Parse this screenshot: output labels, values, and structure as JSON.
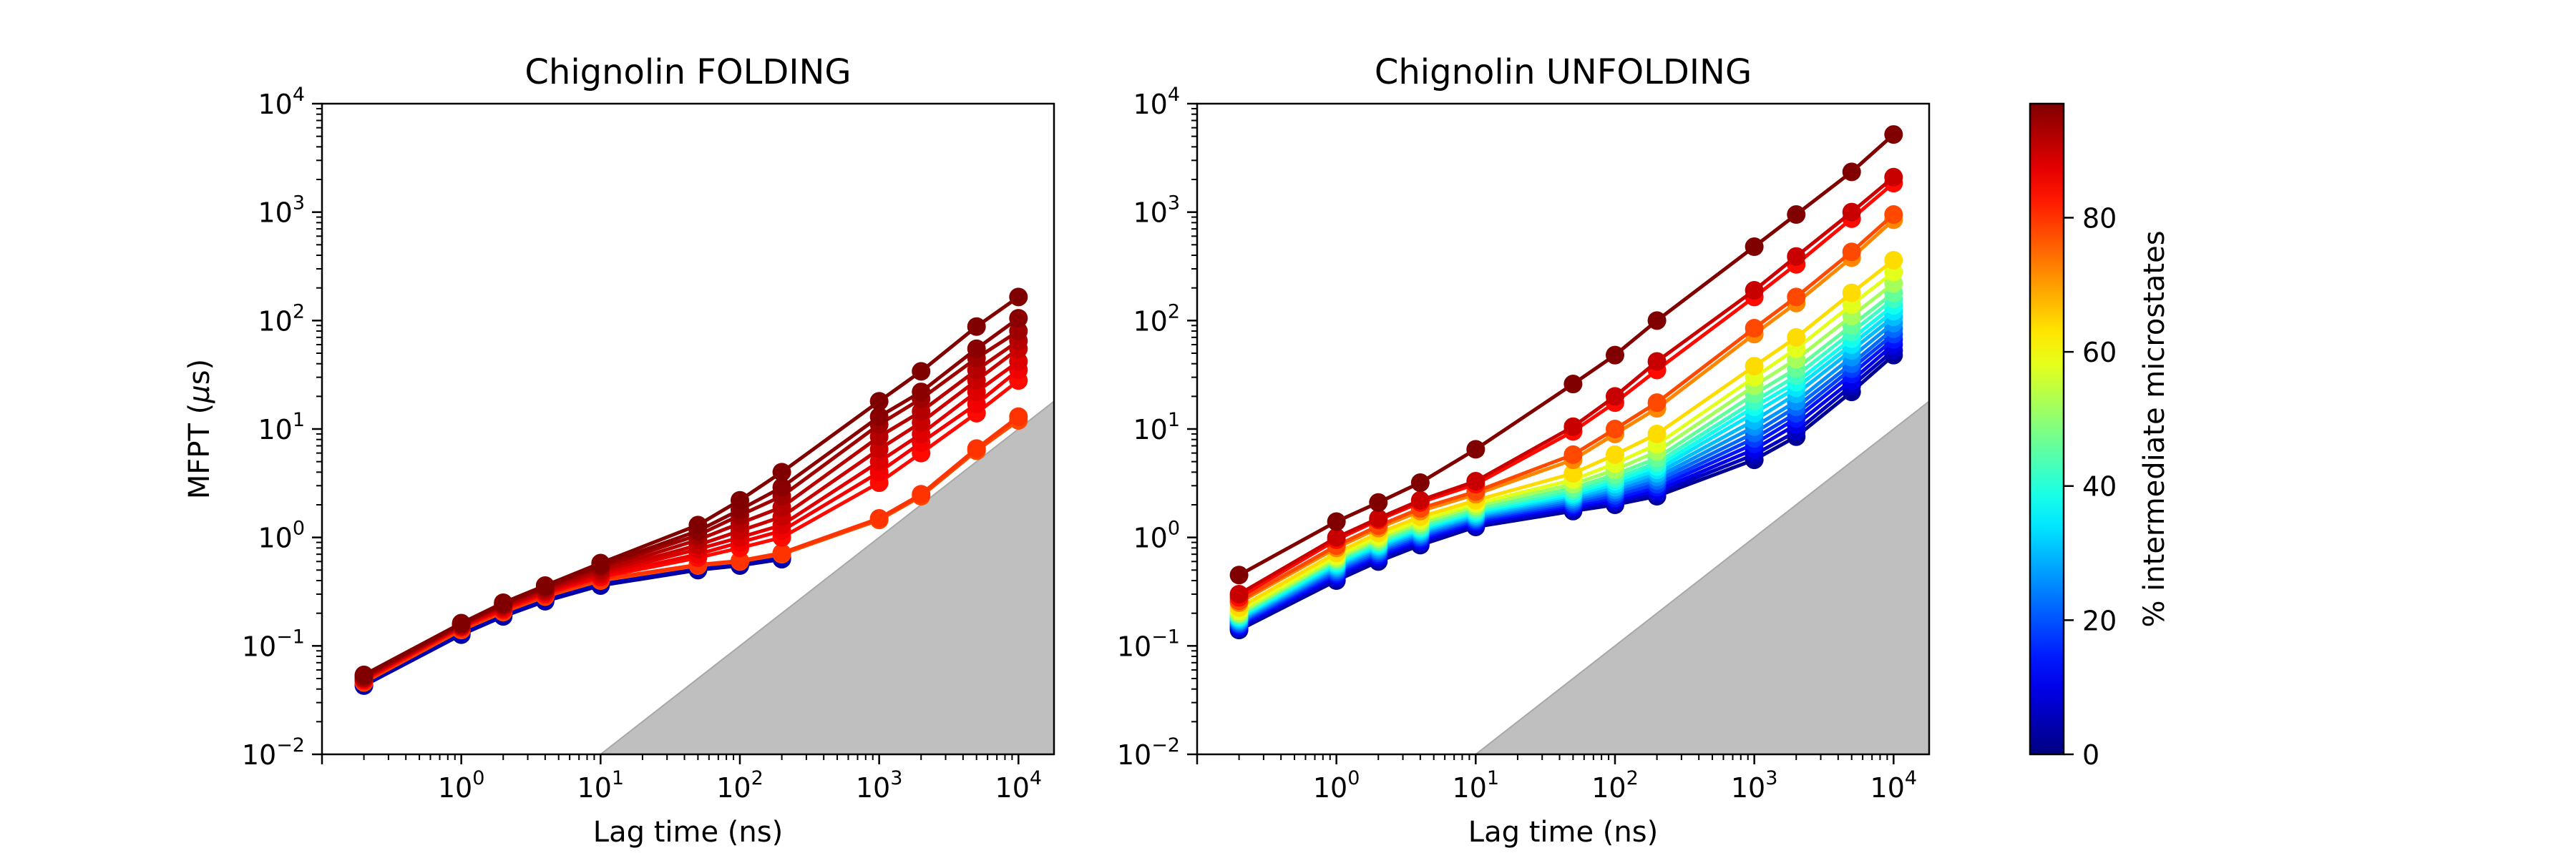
{
  "chart_data": [
    {
      "type": "line",
      "title": "Chignolin FOLDING",
      "xlabel": "Lag time (ns)",
      "ylabel": "MFPT (μs)",
      "ylabel_prefix": "MFPT (",
      "ylabel_symbol": "μ",
      "ylabel_suffix": "s)",
      "xscale": "log",
      "yscale": "log",
      "xlim": [
        0.1,
        18000
      ],
      "ylim": [
        0.01,
        10000
      ],
      "x": [
        0.2,
        1,
        2,
        4,
        10,
        50,
        100,
        200,
        1000,
        2000,
        5000,
        10000
      ],
      "x_ticks": [
        1,
        10,
        100,
        1000,
        10000
      ],
      "y_ticks": [
        0.01,
        0.1,
        1,
        10,
        100,
        1000,
        10000
      ],
      "shaded_region": {
        "from_x": 10,
        "y_equals_x_over": 1000,
        "color": "#bfbfbf"
      },
      "series": [
        {
          "intermediate_pct": 2,
          "values": [
            0.043,
            0.127,
            0.187,
            0.258,
            0.36,
            0.5,
            0.55,
            0.63,
            null,
            null,
            null,
            null
          ]
        },
        {
          "intermediate_pct": 5,
          "values": [
            0.044,
            0.13,
            0.192,
            0.265,
            0.37,
            0.52,
            0.57,
            0.65,
            null,
            null,
            null,
            null
          ]
        },
        {
          "intermediate_pct": 78,
          "values": [
            0.046,
            0.14,
            0.205,
            0.285,
            0.4,
            0.55,
            0.6,
            0.7,
            1.45,
            2.4,
            6.3,
            12.0
          ]
        },
        {
          "intermediate_pct": 80,
          "values": [
            0.047,
            0.143,
            0.21,
            0.29,
            0.41,
            0.56,
            0.61,
            0.72,
            1.5,
            2.5,
            6.6,
            13.0
          ]
        },
        {
          "intermediate_pct": 84,
          "values": [
            0.048,
            0.148,
            0.215,
            0.3,
            0.43,
            0.65,
            0.8,
            1.0,
            3.2,
            6.0,
            14.0,
            28.0
          ]
        },
        {
          "intermediate_pct": 86,
          "values": [
            0.049,
            0.15,
            0.22,
            0.31,
            0.44,
            0.7,
            0.9,
            1.15,
            4.0,
            7.5,
            17.0,
            35.0
          ]
        },
        {
          "intermediate_pct": 88,
          "values": [
            0.05,
            0.152,
            0.225,
            0.315,
            0.46,
            0.78,
            1.0,
            1.3,
            5.0,
            9.0,
            22.0,
            42.0
          ]
        },
        {
          "intermediate_pct": 90,
          "values": [
            0.05,
            0.154,
            0.23,
            0.32,
            0.48,
            0.85,
            1.15,
            1.55,
            6.5,
            11.5,
            28.0,
            55.0
          ]
        },
        {
          "intermediate_pct": 92,
          "values": [
            0.051,
            0.156,
            0.235,
            0.33,
            0.5,
            0.95,
            1.35,
            1.9,
            8.5,
            14.5,
            35.0,
            65.0
          ]
        },
        {
          "intermediate_pct": 94,
          "values": [
            0.052,
            0.158,
            0.24,
            0.34,
            0.53,
            1.05,
            1.6,
            2.4,
            11.0,
            19.0,
            45.0,
            80.0
          ]
        },
        {
          "intermediate_pct": 96,
          "values": [
            0.053,
            0.16,
            0.245,
            0.35,
            0.55,
            1.15,
            1.8,
            2.9,
            13.0,
            22.0,
            55.0,
            105.0
          ]
        },
        {
          "intermediate_pct": 97,
          "values": [
            0.054,
            0.162,
            0.25,
            0.36,
            0.58,
            1.3,
            2.2,
            4.0,
            18.0,
            34.0,
            88.0,
            165.0
          ]
        }
      ]
    },
    {
      "type": "line",
      "title": "Chignolin UNFOLDING",
      "xlabel": "Lag time (ns)",
      "xscale": "log",
      "yscale": "log",
      "xlim": [
        0.1,
        18000
      ],
      "ylim": [
        0.01,
        10000
      ],
      "x": [
        0.2,
        1,
        2,
        4,
        10,
        50,
        100,
        200,
        1000,
        2000,
        5000,
        10000
      ],
      "x_ticks": [
        1,
        10,
        100,
        1000,
        10000
      ],
      "y_ticks": [
        0.01,
        0.1,
        1,
        10,
        100,
        1000,
        10000
      ],
      "shaded_region": {
        "from_x": 10,
        "y_equals_x_over": 1000,
        "color": "#bfbfbf"
      },
      "series": [
        {
          "intermediate_pct": 2,
          "values": [
            0.14,
            0.4,
            0.6,
            0.85,
            1.25,
            1.75,
            2.0,
            2.4,
            5.2,
            8.5,
            22,
            48
          ]
        },
        {
          "intermediate_pct": 6,
          "values": [
            0.145,
            0.42,
            0.63,
            0.89,
            1.3,
            1.82,
            2.1,
            2.55,
            5.8,
            9.5,
            25,
            53
          ]
        },
        {
          "intermediate_pct": 10,
          "values": [
            0.15,
            0.44,
            0.66,
            0.93,
            1.35,
            1.9,
            2.2,
            2.7,
            6.5,
            11,
            28,
            60
          ]
        },
        {
          "intermediate_pct": 14,
          "values": [
            0.155,
            0.46,
            0.69,
            0.97,
            1.4,
            1.98,
            2.3,
            2.9,
            7.3,
            12.5,
            32,
            67
          ]
        },
        {
          "intermediate_pct": 18,
          "values": [
            0.16,
            0.48,
            0.72,
            1.01,
            1.45,
            2.06,
            2.45,
            3.1,
            8.2,
            14,
            36,
            75
          ]
        },
        {
          "intermediate_pct": 22,
          "values": [
            0.165,
            0.5,
            0.75,
            1.05,
            1.5,
            2.15,
            2.6,
            3.35,
            9.2,
            16,
            40,
            84
          ]
        },
        {
          "intermediate_pct": 26,
          "values": [
            0.17,
            0.52,
            0.78,
            1.09,
            1.55,
            2.25,
            2.75,
            3.6,
            10.5,
            18,
            46,
            95
          ]
        },
        {
          "intermediate_pct": 30,
          "values": [
            0.175,
            0.54,
            0.81,
            1.13,
            1.6,
            2.35,
            2.9,
            3.9,
            12,
            21,
            53,
            108
          ]
        },
        {
          "intermediate_pct": 34,
          "values": [
            0.18,
            0.56,
            0.84,
            1.17,
            1.66,
            2.45,
            3.1,
            4.2,
            14,
            24,
            60,
            122
          ]
        },
        {
          "intermediate_pct": 38,
          "values": [
            0.185,
            0.58,
            0.87,
            1.21,
            1.72,
            2.55,
            3.3,
            4.5,
            16,
            27,
            68,
            138
          ]
        },
        {
          "intermediate_pct": 42,
          "values": [
            0.19,
            0.6,
            0.9,
            1.25,
            1.78,
            2.7,
            3.5,
            4.9,
            18,
            31,
            78,
            158
          ]
        },
        {
          "intermediate_pct": 46,
          "values": [
            0.195,
            0.62,
            0.93,
            1.3,
            1.85,
            2.85,
            3.8,
            5.4,
            21,
            36,
            90,
            180
          ]
        },
        {
          "intermediate_pct": 52,
          "values": [
            0.2,
            0.64,
            0.97,
            1.36,
            1.95,
            3.1,
            4.2,
            6.2,
            25,
            44,
            110,
            220
          ]
        },
        {
          "intermediate_pct": 58,
          "values": [
            0.21,
            0.67,
            1.02,
            1.44,
            2.05,
            3.4,
            4.8,
            7.2,
            30,
            55,
            140,
            280
          ]
        },
        {
          "intermediate_pct": 64,
          "values": [
            0.225,
            0.72,
            1.1,
            1.55,
            2.2,
            3.9,
            5.8,
            9.0,
            38,
            70,
            180,
            360
          ]
        },
        {
          "intermediate_pct": 72,
          "values": [
            0.25,
            0.8,
            1.22,
            1.75,
            2.5,
            5.2,
            9.0,
            15.5,
            75,
            145,
            380,
            850
          ]
        },
        {
          "intermediate_pct": 78,
          "values": [
            0.26,
            0.84,
            1.28,
            1.85,
            2.65,
            5.8,
            10.0,
            17.5,
            85,
            165,
            430,
            950
          ]
        },
        {
          "intermediate_pct": 84,
          "values": [
            0.28,
            0.95,
            1.45,
            2.1,
            3.1,
            9.5,
            17.5,
            35,
            165,
            330,
            870,
            1850
          ]
        },
        {
          "intermediate_pct": 90,
          "values": [
            0.3,
            1.0,
            1.5,
            2.2,
            3.3,
            10.5,
            20,
            42,
            190,
            390,
            1000,
            2100
          ]
        },
        {
          "intermediate_pct": 97,
          "values": [
            0.45,
            1.4,
            2.1,
            3.2,
            6.5,
            26,
            48,
            100,
            480,
            950,
            2350,
            5200
          ]
        }
      ]
    }
  ],
  "colorbar": {
    "label": "% intermediate microstates",
    "min": 0,
    "max": 97,
    "ticks": [
      0,
      20,
      40,
      60,
      80
    ],
    "colormap": "jet"
  }
}
